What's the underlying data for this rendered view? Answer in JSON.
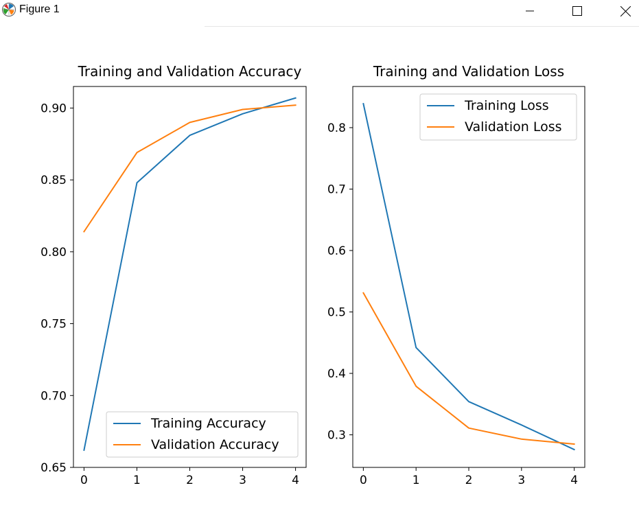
{
  "window": {
    "title": "Figure 1",
    "icon": "matplotlib-icon",
    "controls": [
      "minimize-icon",
      "maximize-icon",
      "close-icon"
    ]
  },
  "colors": {
    "series_blue": "#1f77b4",
    "series_orange": "#ff7f0e",
    "axis": "#000000",
    "legend_border": "#cccccc"
  },
  "chart_data": [
    {
      "type": "line",
      "title": "Training and Validation Accuracy",
      "xlabel": "",
      "ylabel": "",
      "x": [
        0,
        1,
        2,
        3,
        4
      ],
      "xlim": [
        -0.2,
        4.2
      ],
      "ylim": [
        0.65,
        0.915
      ],
      "xticks": [
        0,
        1,
        2,
        3,
        4
      ],
      "xtick_labels": [
        "0",
        "1",
        "2",
        "3",
        "4"
      ],
      "yticks": [
        0.65,
        0.7,
        0.75,
        0.8,
        0.85,
        0.9
      ],
      "ytick_labels": [
        "0.65",
        "0.70",
        "0.75",
        "0.80",
        "0.85",
        "0.90"
      ],
      "grid": false,
      "legend_position": "lower-right",
      "series": [
        {
          "name": "Training Accuracy",
          "color": "#1f77b4",
          "values": [
            0.662,
            0.848,
            0.881,
            0.896,
            0.907
          ]
        },
        {
          "name": "Validation Accuracy",
          "color": "#ff7f0e",
          "values": [
            0.814,
            0.869,
            0.89,
            0.899,
            0.902
          ]
        }
      ]
    },
    {
      "type": "line",
      "title": "Training and Validation Loss",
      "xlabel": "",
      "ylabel": "",
      "x": [
        0,
        1,
        2,
        3,
        4
      ],
      "xlim": [
        -0.2,
        4.2
      ],
      "ylim": [
        0.247,
        0.867
      ],
      "xticks": [
        0,
        1,
        2,
        3,
        4
      ],
      "xtick_labels": [
        "0",
        "1",
        "2",
        "3",
        "4"
      ],
      "yticks": [
        0.3,
        0.4,
        0.5,
        0.6,
        0.7,
        0.8
      ],
      "ytick_labels": [
        "0.3",
        "0.4",
        "0.5",
        "0.6",
        "0.7",
        "0.8"
      ],
      "grid": false,
      "legend_position": "upper-right",
      "series": [
        {
          "name": "Training Loss",
          "color": "#1f77b4",
          "values": [
            0.839,
            0.442,
            0.354,
            0.316,
            0.276
          ]
        },
        {
          "name": "Validation Loss",
          "color": "#ff7f0e",
          "values": [
            0.531,
            0.379,
            0.311,
            0.293,
            0.285
          ]
        }
      ]
    }
  ]
}
